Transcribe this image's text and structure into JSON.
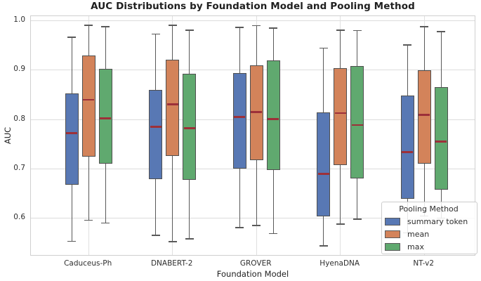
{
  "chart_data": {
    "type": "boxplot",
    "title": "AUC Distributions by Foundation Model and Pooling Method",
    "xlabel": "Foundation Model",
    "ylabel": "AUC",
    "categories": [
      "Caduceus-Ph",
      "DNABERT-2",
      "GROVER",
      "HyenaDNA",
      "NT-v2"
    ],
    "ytick_labels": [
      "0.6",
      "0.7",
      "0.8",
      "0.9",
      "1.0"
    ],
    "ylim": [
      0.5224,
      1.0095
    ],
    "grid": true,
    "legend": {
      "title": "Pooling Method",
      "position": "lower right"
    },
    "series": [
      {
        "name": "summary token",
        "color": "#5878b4",
        "boxes": [
          {
            "whislo": 0.553,
            "q1": 0.668,
            "med": 0.772,
            "q3": 0.853,
            "whishi": 0.967
          },
          {
            "whislo": 0.565,
            "q1": 0.679,
            "med": 0.785,
            "q3": 0.86,
            "whishi": 0.973
          },
          {
            "whislo": 0.581,
            "q1": 0.701,
            "med": 0.805,
            "q3": 0.894,
            "whishi": 0.987
          },
          {
            "whislo": 0.544,
            "q1": 0.604,
            "med": 0.69,
            "q3": 0.814,
            "whishi": 0.945
          },
          {
            "whislo": 0.57,
            "q1": 0.639,
            "med": 0.734,
            "q3": 0.848,
            "whishi": 0.951
          }
        ]
      },
      {
        "name": "mean",
        "color": "#d3835a",
        "boxes": [
          {
            "whislo": 0.596,
            "q1": 0.724,
            "med": 0.84,
            "q3": 0.93,
            "whishi": 0.991
          },
          {
            "whislo": 0.552,
            "q1": 0.726,
            "med": 0.831,
            "q3": 0.921,
            "whishi": 0.991
          },
          {
            "whislo": 0.585,
            "q1": 0.718,
            "med": 0.815,
            "q3": 0.91,
            "whishi": 0.99
          },
          {
            "whislo": 0.588,
            "q1": 0.707,
            "med": 0.813,
            "q3": 0.904,
            "whishi": 0.981
          },
          {
            "whislo": 0.604,
            "q1": 0.71,
            "med": 0.809,
            "q3": 0.9,
            "whishi": 0.988
          }
        ]
      },
      {
        "name": "max",
        "color": "#60a96f",
        "boxes": [
          {
            "whislo": 0.59,
            "q1": 0.71,
            "med": 0.802,
            "q3": 0.903,
            "whishi": 0.988
          },
          {
            "whislo": 0.558,
            "q1": 0.677,
            "med": 0.782,
            "q3": 0.893,
            "whishi": 0.981
          },
          {
            "whislo": 0.569,
            "q1": 0.698,
            "med": 0.801,
            "q3": 0.92,
            "whishi": 0.985
          },
          {
            "whislo": 0.598,
            "q1": 0.68,
            "med": 0.789,
            "q3": 0.909,
            "whishi": 0.98
          },
          {
            "whislo": 0.6,
            "q1": 0.657,
            "med": 0.755,
            "q3": 0.866,
            "whishi": 0.978
          }
        ]
      }
    ],
    "style": {
      "median_color": "#9d3039",
      "box_edge_color": "#4f4f4f",
      "whisker_color": "#595959",
      "grid_color": "#dcdcdc",
      "background": "#ffffff"
    }
  }
}
